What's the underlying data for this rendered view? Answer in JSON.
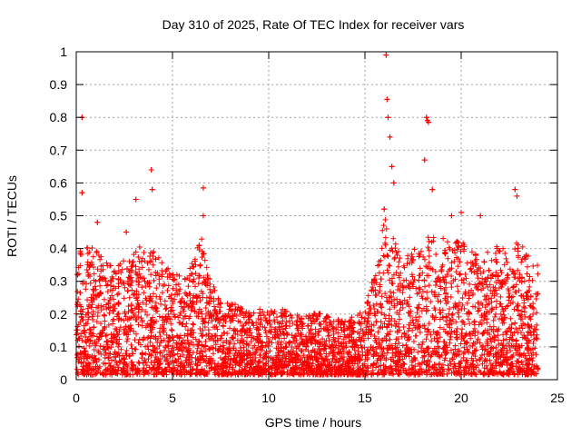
{
  "chart_data": {
    "type": "scatter",
    "title": "Day 310 of 2025, Rate Of TEC Index for receiver vars",
    "xlabel": "GPS time / hours",
    "ylabel": "ROTI / TECUs",
    "xlim": [
      0,
      25
    ],
    "ylim": [
      0,
      1
    ],
    "x_ticks": [
      0,
      5,
      10,
      15,
      20,
      25
    ],
    "y_ticks": [
      0,
      0.1,
      0.2,
      0.3,
      0.4,
      0.5,
      0.6,
      0.7,
      0.8,
      0.9,
      1
    ],
    "grid": true,
    "marker": "plus",
    "marker_color": "#ff0000",
    "envelope": {
      "description_hours": [
        0,
        0.5,
        1,
        1.5,
        2,
        2.5,
        3,
        3.5,
        4,
        4.5,
        5,
        5.5,
        6,
        6.5,
        7,
        7.5,
        8,
        8.5,
        9,
        9.5,
        10,
        10.5,
        11,
        11.5,
        12,
        12.5,
        13,
        13.5,
        14,
        14.5,
        15,
        15.5,
        16,
        16.5,
        17,
        17.5,
        18,
        18.5,
        19,
        19.5,
        20,
        20.5,
        21,
        21.5,
        22,
        22.5,
        23,
        23.5,
        24
      ],
      "typical_max": [
        0.42,
        0.4,
        0.38,
        0.36,
        0.34,
        0.36,
        0.38,
        0.4,
        0.38,
        0.34,
        0.32,
        0.3,
        0.34,
        0.42,
        0.28,
        0.24,
        0.22,
        0.21,
        0.2,
        0.2,
        0.2,
        0.2,
        0.2,
        0.19,
        0.18,
        0.19,
        0.18,
        0.17,
        0.17,
        0.18,
        0.2,
        0.32,
        0.48,
        0.42,
        0.36,
        0.38,
        0.4,
        0.44,
        0.42,
        0.4,
        0.42,
        0.38,
        0.36,
        0.38,
        0.4,
        0.38,
        0.42,
        0.36,
        0.34
      ]
    },
    "outliers": [
      {
        "x": 0.3,
        "y": 0.8
      },
      {
        "x": 0.3,
        "y": 0.57
      },
      {
        "x": 3.1,
        "y": 0.55
      },
      {
        "x": 3.9,
        "y": 0.64
      },
      {
        "x": 3.95,
        "y": 0.58
      },
      {
        "x": 6.6,
        "y": 0.585
      },
      {
        "x": 16.1,
        "y": 0.99
      },
      {
        "x": 16.15,
        "y": 0.855
      },
      {
        "x": 16.2,
        "y": 0.8
      },
      {
        "x": 16.3,
        "y": 0.74
      },
      {
        "x": 16.4,
        "y": 0.65
      },
      {
        "x": 16.5,
        "y": 0.6
      },
      {
        "x": 18.2,
        "y": 0.8
      },
      {
        "x": 18.25,
        "y": 0.79
      },
      {
        "x": 18.3,
        "y": 0.785
      },
      {
        "x": 18.1,
        "y": 0.67
      },
      {
        "x": 18.5,
        "y": 0.58
      },
      {
        "x": 22.8,
        "y": 0.58
      },
      {
        "x": 22.9,
        "y": 0.56
      },
      {
        "x": 19.5,
        "y": 0.5
      },
      {
        "x": 20.0,
        "y": 0.51
      },
      {
        "x": 21.0,
        "y": 0.5
      },
      {
        "x": 6.6,
        "y": 0.5
      },
      {
        "x": 16.0,
        "y": 0.52
      },
      {
        "x": 2.6,
        "y": 0.45
      },
      {
        "x": 1.1,
        "y": 0.48
      }
    ]
  }
}
